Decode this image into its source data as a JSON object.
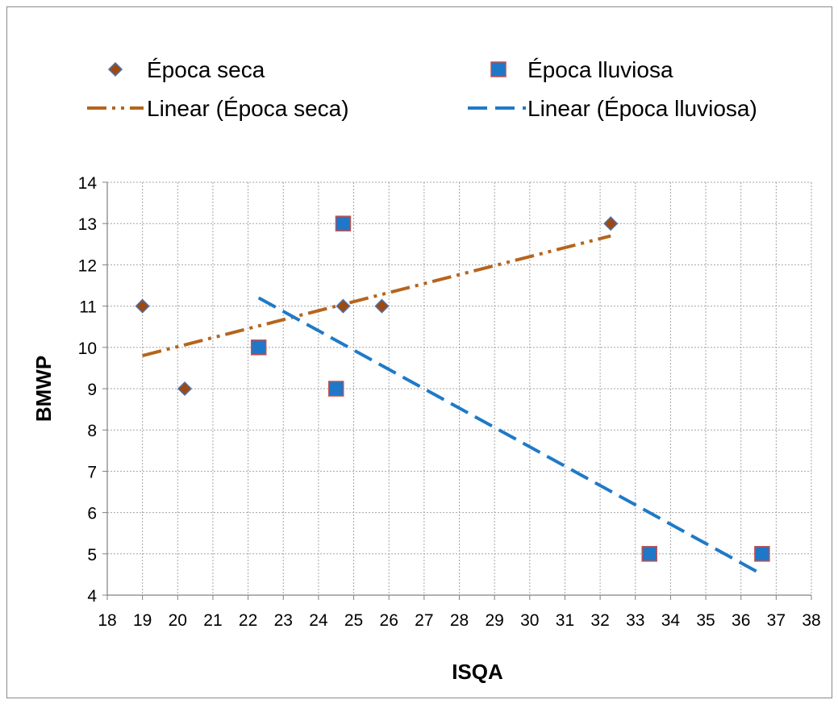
{
  "chart_data": {
    "type": "scatter",
    "xlabel": "ISQA",
    "ylabel": "BMWP",
    "xlim": [
      18,
      38
    ],
    "ylim": [
      4,
      14
    ],
    "x_ticks": [
      "18",
      "19",
      "20",
      "21",
      "22",
      "23",
      "24",
      "25",
      "26",
      "27",
      "28",
      "29",
      "30",
      "31",
      "32",
      "33",
      "34",
      "35",
      "36",
      "37",
      "38"
    ],
    "y_ticks": [
      "4",
      "5",
      "6",
      "7",
      "8",
      "9",
      "10",
      "11",
      "12",
      "13",
      "14"
    ],
    "grid": true,
    "legend_position": "top",
    "series": [
      {
        "name": "Época seca",
        "marker": "diamond",
        "color": "#9c4a12",
        "edge_color": "#4f6fa8",
        "points": [
          {
            "x": 19.0,
            "y": 11
          },
          {
            "x": 20.2,
            "y": 9
          },
          {
            "x": 24.7,
            "y": 11
          },
          {
            "x": 25.8,
            "y": 11
          },
          {
            "x": 32.3,
            "y": 13
          }
        ]
      },
      {
        "name": "Época lluviosa",
        "marker": "square",
        "color": "#1f77c8",
        "edge_color": "#c0504d",
        "points": [
          {
            "x": 22.3,
            "y": 10
          },
          {
            "x": 24.5,
            "y": 9
          },
          {
            "x": 24.7,
            "y": 13
          },
          {
            "x": 33.4,
            "y": 5
          },
          {
            "x": 36.6,
            "y": 5
          }
        ]
      }
    ],
    "trendlines": [
      {
        "name": "Linear (Época seca)",
        "style": "dash-dot-dot",
        "color": "#b5651d",
        "start": {
          "x": 19.0,
          "y": 9.8
        },
        "end": {
          "x": 32.3,
          "y": 12.7
        }
      },
      {
        "name": "Linear (Época lluviosa)",
        "style": "long-dash",
        "color": "#1f7ac7",
        "start": {
          "x": 22.3,
          "y": 11.2
        },
        "end": {
          "x": 36.6,
          "y": 4.5
        }
      }
    ]
  }
}
